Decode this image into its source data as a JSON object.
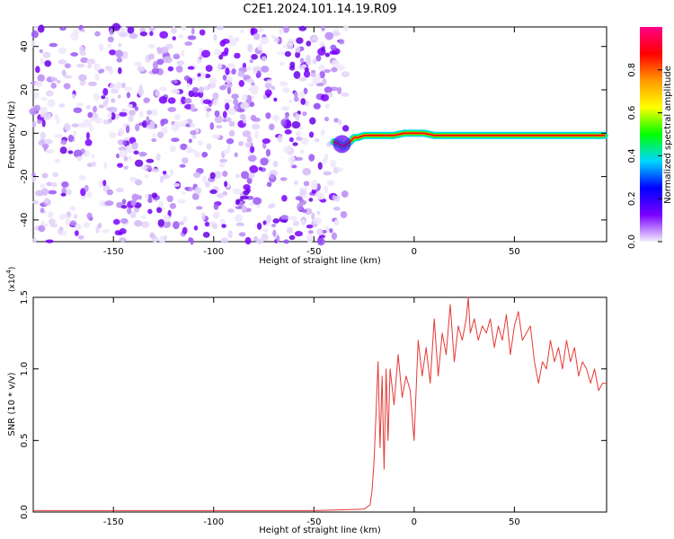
{
  "title": "C2E1.2024.101.14.19.R09",
  "chart_data": [
    {
      "type": "heatmap",
      "xlabel": "Height of straight line (km)",
      "ylabel": "Frequency (Hz)",
      "xlim": [
        -190,
        96
      ],
      "ylim": [
        -50,
        49
      ],
      "xticks": [
        -150,
        -100,
        -50,
        0,
        50
      ],
      "yticks": [
        -40,
        -20,
        0,
        20,
        40
      ],
      "noise_region_x": [
        -190,
        -34
      ],
      "signal_trace": {
        "x": [
          -40,
          -35,
          -32,
          -30,
          -28,
          -25,
          -20,
          -15,
          -10,
          -5,
          0,
          5,
          10,
          20,
          30,
          40,
          50,
          60,
          70,
          80,
          90,
          95
        ],
        "y": [
          -4,
          -6,
          -4,
          -2,
          -2,
          -1,
          -1,
          -1,
          -1,
          0,
          0,
          0,
          -1,
          -1,
          -1,
          -1,
          -1,
          -1,
          -1,
          -1,
          -1,
          -1
        ]
      },
      "colorbar": {
        "label": "Normalized spectral amplitude",
        "range": [
          0,
          1
        ],
        "ticks": [
          "0.0",
          "0.2",
          "0.4",
          "0.6",
          "0.8"
        ],
        "colors": [
          "#f3eefc",
          "#7a00ff",
          "#0000ff",
          "#00d8ff",
          "#00ff00",
          "#ffff00",
          "#ff9900",
          "#ff0000",
          "#ff0088"
        ]
      }
    },
    {
      "type": "line",
      "xlabel": "Height of straight line (km)",
      "ylabel": "SNR (10 * v/v)",
      "multiplier": "(x10",
      "multiplier_exp": "4",
      "xlim": [
        -190,
        96
      ],
      "ylim": [
        0,
        1.5
      ],
      "xticks": [
        -150,
        -100,
        -50,
        0,
        50
      ],
      "yticks": [
        "0.0",
        "0.5",
        "1.0",
        "1.5"
      ],
      "color": "#e53935",
      "series": [
        {
          "x": [
            -190,
            -150,
            -100,
            -50,
            -25,
            -22,
            -21,
            -20,
            -19,
            -18,
            -17,
            -16,
            -15,
            -14,
            -13,
            -12,
            -10,
            -8,
            -6,
            -4,
            -2,
            0,
            2,
            4,
            6,
            8,
            10,
            12,
            14,
            16,
            18,
            20,
            22,
            24,
            26,
            27,
            28,
            30,
            32,
            34,
            36,
            38,
            40,
            42,
            44,
            46,
            48,
            50,
            52,
            54,
            56,
            58,
            60,
            62,
            64,
            66,
            68,
            70,
            72,
            74,
            76,
            78,
            80,
            82,
            84,
            86,
            88,
            90,
            92,
            94,
            96
          ],
          "y": [
            0.01,
            0.01,
            0.01,
            0.01,
            0.02,
            0.05,
            0.15,
            0.35,
            0.7,
            1.05,
            0.45,
            0.95,
            0.3,
            1.0,
            0.5,
            1.0,
            0.75,
            1.1,
            0.8,
            0.95,
            0.85,
            0.5,
            1.2,
            0.95,
            1.15,
            0.9,
            1.35,
            0.95,
            1.25,
            1.1,
            1.45,
            1.05,
            1.3,
            1.2,
            1.35,
            1.5,
            1.25,
            1.35,
            1.2,
            1.3,
            1.25,
            1.35,
            1.15,
            1.3,
            1.2,
            1.38,
            1.1,
            1.3,
            1.4,
            1.2,
            1.25,
            1.3,
            1.05,
            0.9,
            1.05,
            1.0,
            1.2,
            1.05,
            1.15,
            1.0,
            1.2,
            1.05,
            1.15,
            0.95,
            1.05,
            1.0,
            0.9,
            1.0,
            0.85,
            0.9,
            0.9
          ]
        }
      ]
    }
  ]
}
